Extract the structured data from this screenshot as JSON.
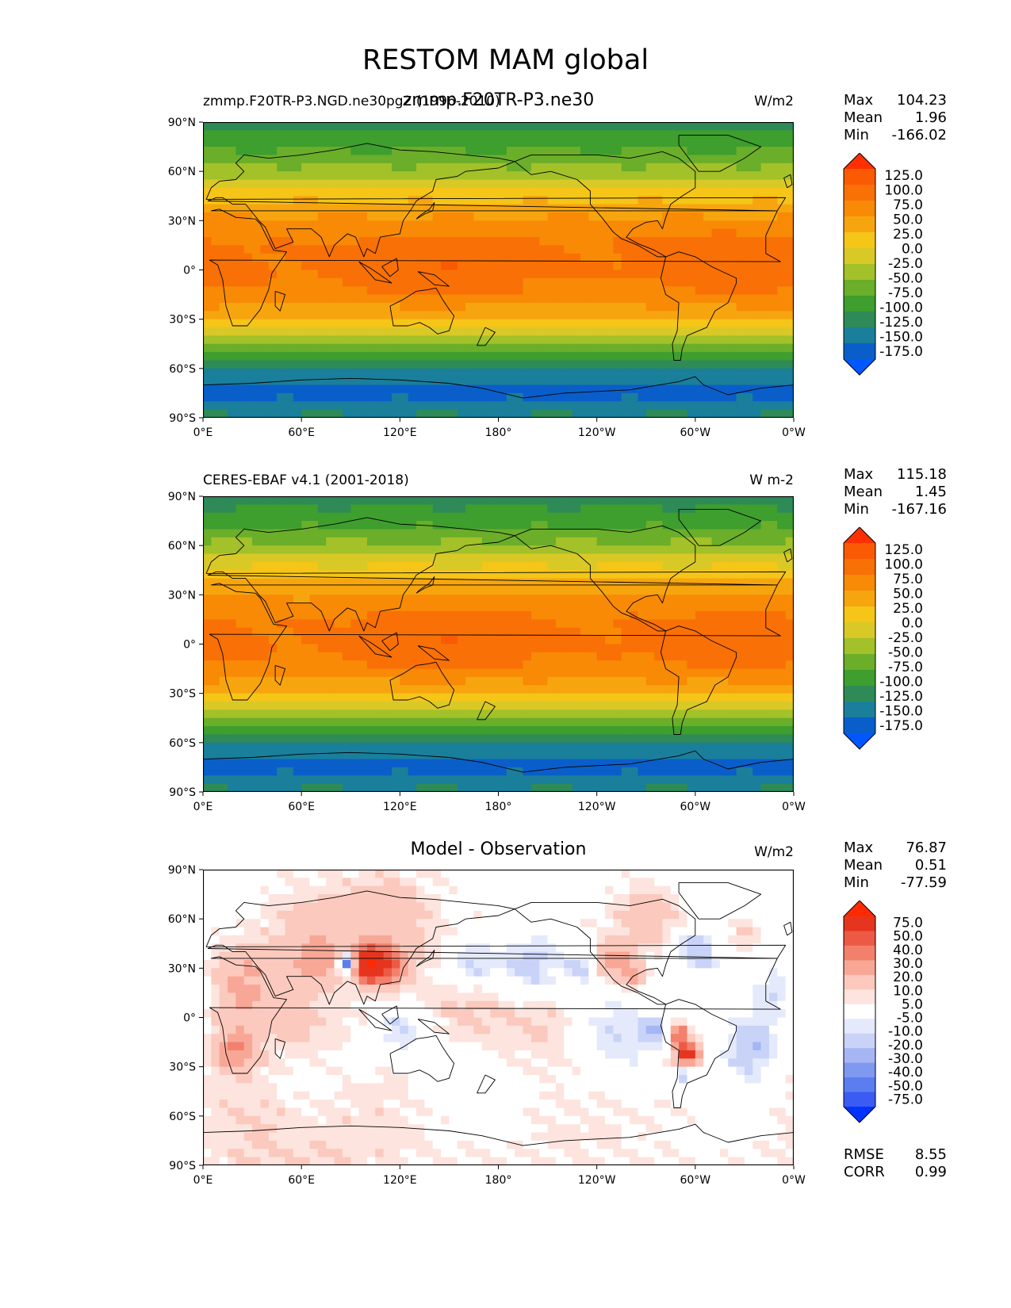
{
  "suptitle": "RESTOM MAM global",
  "panels": [
    {
      "left_title": "zmmp.F20TR-P3.NGD.ne30pg2 (1996-2010)",
      "center_title": "zmmp.F20TR-P3.ne30",
      "units": "W/m2",
      "stats": {
        "max_label": "Max",
        "max": "104.23",
        "mean_label": "Mean",
        "mean": "1.96",
        "min_label": "Min",
        "min": "-166.02"
      },
      "colorbar": [
        "125.0",
        "100.0",
        "75.0",
        "50.0",
        "25.0",
        "0.0",
        "-25.0",
        "-50.0",
        "-75.0",
        "-100.0",
        "-125.0",
        "-150.0",
        "-175.0"
      ]
    },
    {
      "left_title": "CERES-EBAF v4.1 (2001-2018)",
      "center_title": "",
      "units": "W m-2",
      "stats": {
        "max_label": "Max",
        "max": "115.18",
        "mean_label": "Mean",
        "mean": "1.45",
        "min_label": "Min",
        "min": "-167.16"
      },
      "colorbar": [
        "125.0",
        "100.0",
        "75.0",
        "50.0",
        "25.0",
        "0.0",
        "-25.0",
        "-50.0",
        "-75.0",
        "-100.0",
        "-125.0",
        "-150.0",
        "-175.0"
      ]
    },
    {
      "left_title": "",
      "center_title": "Model - Observation",
      "units": "W/m2",
      "stats": {
        "max_label": "Max",
        "max": "76.87",
        "mean_label": "Mean",
        "mean": "0.51",
        "min_label": "Min",
        "min": "-77.59"
      },
      "colorbar": [
        "75.0",
        "50.0",
        "40.0",
        "30.0",
        "20.0",
        "10.0",
        "5.0",
        "-5.0",
        "-10.0",
        "-20.0",
        "-30.0",
        "-40.0",
        "-50.0",
        "-75.0"
      ],
      "extra_stats": {
        "rmse_label": "RMSE",
        "rmse": "8.55",
        "corr_label": "CORR",
        "corr": "0.99"
      }
    }
  ],
  "chart_data": [
    {
      "type": "heatmap",
      "title": "zmmp.F20TR-P3.ne30",
      "xlabel": "",
      "ylabel": "",
      "xticks": [
        "0°E",
        "60°E",
        "120°E",
        "180°",
        "120°W",
        "60°W",
        "0°W"
      ],
      "yticks": [
        "90°N",
        "60°N",
        "30°N",
        "0°",
        "30°S",
        "60°S",
        "90°S"
      ],
      "xlim": [
        0,
        360
      ],
      "ylim": [
        -90,
        90
      ],
      "zonal_mean_profile": {
        "lat": [
          90,
          75,
          60,
          45,
          30,
          15,
          0,
          -15,
          -30,
          -45,
          -60,
          -75,
          -90
        ],
        "value": [
          -110,
          -80,
          -40,
          15,
          55,
          82,
          88,
          70,
          25,
          -40,
          -125,
          -160,
          -120
        ]
      },
      "levels": [
        -175,
        -150,
        -125,
        -100,
        -75,
        -50,
        -25,
        0,
        25,
        50,
        75,
        100,
        125
      ],
      "max": 104.23,
      "mean": 1.96,
      "min": -166.02
    },
    {
      "type": "heatmap",
      "title": "CERES-EBAF v4.1 (2001-2018)",
      "xlabel": "",
      "ylabel": "",
      "xticks": [
        "0°E",
        "60°E",
        "120°E",
        "180°",
        "120°W",
        "60°W",
        "0°W"
      ],
      "yticks": [
        "90°N",
        "60°N",
        "30°N",
        "0°",
        "30°S",
        "60°S",
        "90°S"
      ],
      "xlim": [
        0,
        360
      ],
      "ylim": [
        -90,
        90
      ],
      "zonal_mean_profile": {
        "lat": [
          90,
          75,
          60,
          45,
          30,
          15,
          0,
          -15,
          -30,
          -45,
          -60,
          -75,
          -90
        ],
        "value": [
          -110,
          -85,
          -45,
          10,
          50,
          80,
          88,
          72,
          25,
          -40,
          -125,
          -160,
          -120
        ]
      },
      "levels": [
        -175,
        -150,
        -125,
        -100,
        -75,
        -50,
        -25,
        0,
        25,
        50,
        75,
        100,
        125
      ],
      "max": 115.18,
      "mean": 1.45,
      "min": -167.16
    },
    {
      "type": "heatmap",
      "title": "Model - Observation",
      "xlabel": "",
      "ylabel": "",
      "xticks": [
        "0°E",
        "60°E",
        "120°E",
        "180°",
        "120°W",
        "60°W",
        "0°W"
      ],
      "yticks": [
        "90°N",
        "60°N",
        "30°N",
        "0°",
        "30°S",
        "60°S",
        "90°S"
      ],
      "xlim": [
        0,
        360
      ],
      "ylim": [
        -90,
        90
      ],
      "levels": [
        -75,
        -50,
        -40,
        -30,
        -20,
        -10,
        -5,
        5,
        10,
        20,
        30,
        40,
        50,
        75
      ],
      "max": 76.87,
      "mean": 0.51,
      "min": -77.59,
      "rmse": 8.55,
      "corr": 0.99
    }
  ],
  "colors": {
    "abs_cmap": [
      "#0057ff",
      "#0a5ec9",
      "#1a7f9b",
      "#2e8b57",
      "#3e9e2e",
      "#6aae2a",
      "#a3c128",
      "#d8c927",
      "#f5c518",
      "#f7a50f",
      "#f88a06",
      "#f97006",
      "#fa5a04",
      "#ff2f00"
    ],
    "diff_cmap": [
      "#0033ff",
      "#3b5cf2",
      "#5a7ef0",
      "#7f99f0",
      "#a6b6f4",
      "#c9d3f8",
      "#e4eafc",
      "#ffffff",
      "#fde4de",
      "#fbc9bd",
      "#f8a796",
      "#f3806d",
      "#ec5a45",
      "#e5351f",
      "#ff2a00"
    ],
    "land_outline": "#000000"
  }
}
